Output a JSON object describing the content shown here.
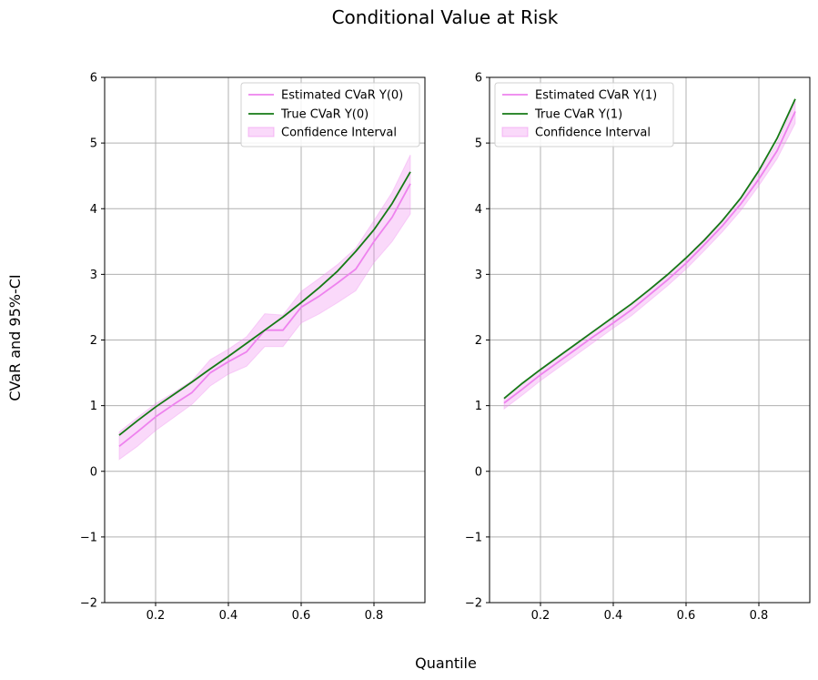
{
  "figure": {
    "title": "Conditional Value at Risk",
    "xlabel": "Quantile",
    "ylabel": "CVaR and 95%-CI"
  },
  "colors": {
    "estimated": "#ee82ee",
    "true": "#157a15",
    "band": "#ee82ee",
    "grid": "#b0b0b0"
  },
  "chart_data": [
    {
      "type": "line",
      "x": [
        0.1,
        0.15,
        0.2,
        0.25,
        0.3,
        0.35,
        0.4,
        0.45,
        0.5,
        0.55,
        0.6,
        0.65,
        0.7,
        0.75,
        0.8,
        0.85,
        0.9
      ],
      "series": [
        {
          "name": "Estimated CVaR Y(0)",
          "values": [
            0.38,
            0.6,
            0.83,
            1.02,
            1.2,
            1.5,
            1.67,
            1.82,
            2.15,
            2.15,
            2.5,
            2.67,
            2.87,
            3.08,
            3.5,
            3.87,
            4.38
          ],
          "lower": [
            0.18,
            0.38,
            0.62,
            0.82,
            1.02,
            1.3,
            1.48,
            1.6,
            1.9,
            1.9,
            2.26,
            2.4,
            2.57,
            2.75,
            3.18,
            3.5,
            3.92
          ],
          "upper": [
            0.6,
            0.82,
            1.03,
            1.2,
            1.38,
            1.7,
            1.86,
            2.05,
            2.4,
            2.38,
            2.74,
            2.94,
            3.15,
            3.4,
            3.82,
            4.25,
            4.82
          ]
        },
        {
          "name": "True CVaR Y(0)",
          "values": [
            0.55,
            0.77,
            0.98,
            1.17,
            1.36,
            1.56,
            1.75,
            1.95,
            2.15,
            2.35,
            2.57,
            2.8,
            3.05,
            3.35,
            3.68,
            4.08,
            4.56
          ]
        },
        {
          "name": "Confidence Interval",
          "band_of": "Estimated CVaR Y(0)"
        }
      ],
      "xlim": [
        0.06,
        0.94
      ],
      "ylim": [
        -2,
        6
      ],
      "xticks": [
        0.2,
        0.4,
        0.6,
        0.8
      ],
      "xtick_labels": [
        "0.2",
        "0.4",
        "0.6",
        "0.8"
      ],
      "yticks": [
        -2,
        -1,
        0,
        1,
        2,
        3,
        4,
        5,
        6
      ],
      "ytick_labels": [
        "−2",
        "−1",
        "0",
        "1",
        "2",
        "3",
        "4",
        "5",
        "6"
      ],
      "grid": true,
      "legend": "top-right"
    },
    {
      "type": "line",
      "x": [
        0.1,
        0.15,
        0.2,
        0.25,
        0.3,
        0.35,
        0.4,
        0.45,
        0.5,
        0.55,
        0.6,
        0.65,
        0.7,
        0.75,
        0.8,
        0.85,
        0.9
      ],
      "series": [
        {
          "name": "Estimated CVaR Y(1)",
          "values": [
            1.04,
            1.25,
            1.47,
            1.67,
            1.87,
            2.07,
            2.26,
            2.46,
            2.69,
            2.92,
            3.17,
            3.45,
            3.74,
            4.07,
            4.45,
            4.88,
            5.48
          ],
          "lower": [
            0.95,
            1.16,
            1.38,
            1.58,
            1.78,
            1.98,
            2.18,
            2.37,
            2.6,
            2.83,
            3.08,
            3.36,
            3.65,
            3.97,
            4.35,
            4.76,
            5.3
          ],
          "upper": [
            1.12,
            1.34,
            1.56,
            1.76,
            1.96,
            2.16,
            2.35,
            2.55,
            2.78,
            3.01,
            3.26,
            3.54,
            3.83,
            4.17,
            4.56,
            5.0,
            5.64
          ]
        },
        {
          "name": "True CVaR Y(1)",
          "values": [
            1.11,
            1.34,
            1.55,
            1.75,
            1.95,
            2.15,
            2.35,
            2.55,
            2.77,
            3.0,
            3.25,
            3.52,
            3.82,
            4.16,
            4.58,
            5.07,
            5.67
          ]
        },
        {
          "name": "Confidence Interval",
          "band_of": "Estimated CVaR Y(1)"
        }
      ],
      "xlim": [
        0.06,
        0.94
      ],
      "ylim": [
        -2,
        6
      ],
      "xticks": [
        0.2,
        0.4,
        0.6,
        0.8
      ],
      "xtick_labels": [
        "0.2",
        "0.4",
        "0.6",
        "0.8"
      ],
      "yticks": [
        -2,
        -1,
        0,
        1,
        2,
        3,
        4,
        5,
        6
      ],
      "ytick_labels": [
        "−2",
        "−1",
        "0",
        "1",
        "2",
        "3",
        "4",
        "5",
        "6"
      ],
      "grid": true,
      "legend": "top-left"
    }
  ]
}
